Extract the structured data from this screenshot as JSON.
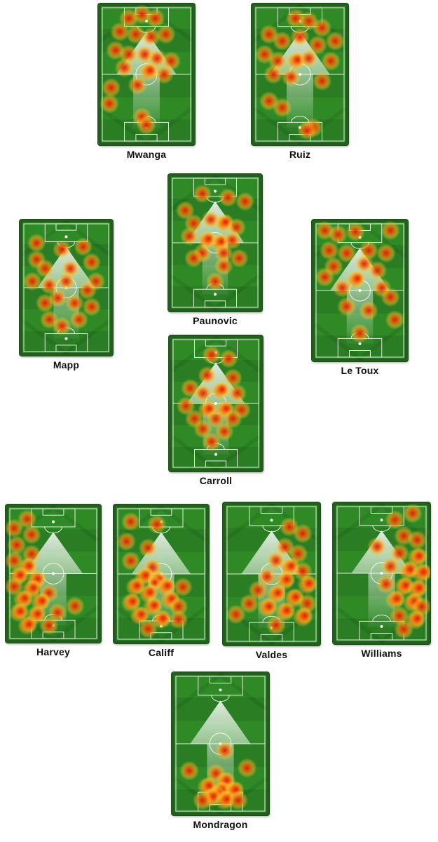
{
  "players": [
    {
      "id": "mwanga",
      "name": "Mwanga",
      "heat": [
        [
          0.3,
          0.08,
          1
        ],
        [
          0.45,
          0.05,
          1
        ],
        [
          0.6,
          0.08,
          1
        ],
        [
          0.2,
          0.18,
          1
        ],
        [
          0.38,
          0.2,
          1
        ],
        [
          0.55,
          0.22,
          1
        ],
        [
          0.72,
          0.2,
          1
        ],
        [
          0.15,
          0.32,
          1
        ],
        [
          0.3,
          0.35,
          1
        ],
        [
          0.48,
          0.35,
          1
        ],
        [
          0.62,
          0.38,
          1
        ],
        [
          0.78,
          0.4,
          1
        ],
        [
          0.25,
          0.45,
          1
        ],
        [
          0.52,
          0.48,
          2
        ],
        [
          0.7,
          0.5,
          1
        ],
        [
          0.1,
          0.6,
          1
        ],
        [
          0.4,
          0.58,
          1
        ],
        [
          0.08,
          0.72,
          1
        ],
        [
          0.45,
          0.82,
          1
        ],
        [
          0.5,
          0.88,
          1
        ]
      ]
    },
    {
      "id": "ruiz",
      "name": "Ruiz",
      "heat": [
        [
          0.45,
          0.08,
          1
        ],
        [
          0.6,
          0.1,
          1
        ],
        [
          0.75,
          0.15,
          1
        ],
        [
          0.15,
          0.2,
          1
        ],
        [
          0.3,
          0.25,
          1
        ],
        [
          0.5,
          0.22,
          1
        ],
        [
          0.7,
          0.28,
          1
        ],
        [
          0.9,
          0.25,
          1
        ],
        [
          0.1,
          0.35,
          1
        ],
        [
          0.25,
          0.4,
          1
        ],
        [
          0.45,
          0.4,
          2
        ],
        [
          0.6,
          0.38,
          1
        ],
        [
          0.85,
          0.4,
          1
        ],
        [
          0.2,
          0.5,
          1
        ],
        [
          0.4,
          0.52,
          1
        ],
        [
          0.75,
          0.55,
          1
        ],
        [
          0.15,
          0.7,
          1
        ],
        [
          0.3,
          0.75,
          1
        ],
        [
          0.65,
          0.9,
          1
        ],
        [
          0.58,
          0.92,
          1
        ]
      ]
    },
    {
      "id": "paunovic",
      "name": "Paunovic",
      "heat": [
        [
          0.35,
          0.12,
          1
        ],
        [
          0.65,
          0.15,
          1
        ],
        [
          0.85,
          0.18,
          1
        ],
        [
          0.15,
          0.25,
          1
        ],
        [
          0.25,
          0.35,
          1
        ],
        [
          0.45,
          0.32,
          1
        ],
        [
          0.6,
          0.35,
          2
        ],
        [
          0.75,
          0.38,
          1
        ],
        [
          0.2,
          0.45,
          1
        ],
        [
          0.4,
          0.48,
          2
        ],
        [
          0.55,
          0.5,
          2
        ],
        [
          0.7,
          0.48,
          1
        ],
        [
          0.35,
          0.58,
          1
        ],
        [
          0.6,
          0.58,
          1
        ],
        [
          0.6,
          0.68,
          1
        ],
        [
          0.5,
          0.8,
          1
        ],
        [
          0.78,
          0.62,
          1
        ],
        [
          0.25,
          0.62,
          1
        ]
      ]
    },
    {
      "id": "mapp",
      "name": "Mapp",
      "heat": [
        [
          0.15,
          0.15,
          1
        ],
        [
          0.45,
          0.2,
          1
        ],
        [
          0.7,
          0.18,
          1
        ],
        [
          0.15,
          0.28,
          1
        ],
        [
          0.25,
          0.35,
          1
        ],
        [
          0.55,
          0.35,
          1
        ],
        [
          0.8,
          0.3,
          1
        ],
        [
          0.1,
          0.45,
          1
        ],
        [
          0.3,
          0.48,
          1
        ],
        [
          0.5,
          0.45,
          1
        ],
        [
          0.75,
          0.52,
          1
        ],
        [
          0.85,
          0.45,
          1
        ],
        [
          0.25,
          0.62,
          1
        ],
        [
          0.4,
          0.58,
          1
        ],
        [
          0.6,
          0.62,
          1
        ],
        [
          0.8,
          0.65,
          1
        ],
        [
          0.3,
          0.75,
          1
        ],
        [
          0.65,
          0.75,
          1
        ],
        [
          0.45,
          0.8,
          1
        ]
      ]
    },
    {
      "id": "letoux",
      "name": "Le Toux",
      "heat": [
        [
          0.1,
          0.05,
          1
        ],
        [
          0.25,
          0.08,
          1
        ],
        [
          0.45,
          0.06,
          1
        ],
        [
          0.85,
          0.05,
          1
        ],
        [
          0.15,
          0.2,
          1
        ],
        [
          0.35,
          0.22,
          1
        ],
        [
          0.6,
          0.2,
          1
        ],
        [
          0.8,
          0.22,
          1
        ],
        [
          0.2,
          0.32,
          1
        ],
        [
          0.55,
          0.3,
          1
        ],
        [
          0.7,
          0.35,
          1
        ],
        [
          0.1,
          0.4,
          1
        ],
        [
          0.45,
          0.42,
          2
        ],
        [
          0.3,
          0.48,
          1
        ],
        [
          0.75,
          0.48,
          1
        ],
        [
          0.85,
          0.55,
          1
        ],
        [
          0.35,
          0.62,
          1
        ],
        [
          0.6,
          0.65,
          1
        ],
        [
          0.9,
          0.72,
          1
        ],
        [
          0.5,
          0.82,
          1
        ]
      ]
    },
    {
      "id": "carroll",
      "name": "Carroll",
      "heat": [
        [
          0.45,
          0.12,
          1
        ],
        [
          0.65,
          0.15,
          1
        ],
        [
          0.4,
          0.28,
          1
        ],
        [
          0.7,
          0.3,
          1
        ],
        [
          0.2,
          0.38,
          1
        ],
        [
          0.35,
          0.42,
          1
        ],
        [
          0.55,
          0.4,
          2
        ],
        [
          0.75,
          0.42,
          1
        ],
        [
          0.15,
          0.52,
          1
        ],
        [
          0.4,
          0.55,
          2
        ],
        [
          0.6,
          0.55,
          2
        ],
        [
          0.8,
          0.55,
          1
        ],
        [
          0.25,
          0.62,
          1
        ],
        [
          0.5,
          0.62,
          1
        ],
        [
          0.7,
          0.62,
          1
        ],
        [
          0.35,
          0.7,
          1
        ],
        [
          0.6,
          0.72,
          1
        ],
        [
          0.45,
          0.8,
          1
        ]
      ]
    },
    {
      "id": "harvey",
      "name": "Harvey",
      "heat": [
        [
          0.2,
          0.08,
          1
        ],
        [
          0.05,
          0.15,
          1
        ],
        [
          0.25,
          0.2,
          1
        ],
        [
          0.08,
          0.28,
          1
        ],
        [
          0.25,
          0.35,
          1
        ],
        [
          0.05,
          0.4,
          1
        ],
        [
          0.2,
          0.45,
          2
        ],
        [
          0.1,
          0.52,
          2
        ],
        [
          0.3,
          0.55,
          2
        ],
        [
          0.05,
          0.6,
          1
        ],
        [
          0.25,
          0.62,
          2
        ],
        [
          0.45,
          0.65,
          1
        ],
        [
          0.15,
          0.7,
          2
        ],
        [
          0.35,
          0.72,
          2
        ],
        [
          0.1,
          0.8,
          2
        ],
        [
          0.3,
          0.82,
          2
        ],
        [
          0.55,
          0.8,
          1
        ],
        [
          0.2,
          0.9,
          2
        ],
        [
          0.45,
          0.9,
          1
        ],
        [
          0.75,
          0.75,
          1
        ]
      ]
    },
    {
      "id": "califf",
      "name": "Califf",
      "heat": [
        [
          0.15,
          0.1,
          1
        ],
        [
          0.45,
          0.12,
          1
        ],
        [
          0.1,
          0.25,
          1
        ],
        [
          0.35,
          0.3,
          1
        ],
        [
          0.15,
          0.4,
          1
        ],
        [
          0.4,
          0.45,
          1
        ],
        [
          0.3,
          0.52,
          2
        ],
        [
          0.45,
          0.55,
          3
        ],
        [
          0.55,
          0.6,
          2
        ],
        [
          0.2,
          0.6,
          2
        ],
        [
          0.35,
          0.65,
          2
        ],
        [
          0.6,
          0.7,
          2
        ],
        [
          0.15,
          0.72,
          2
        ],
        [
          0.4,
          0.75,
          2
        ],
        [
          0.7,
          0.75,
          1
        ],
        [
          0.25,
          0.82,
          2
        ],
        [
          0.5,
          0.85,
          2
        ],
        [
          0.7,
          0.85,
          1
        ],
        [
          0.35,
          0.92,
          1
        ],
        [
          0.75,
          0.6,
          1
        ]
      ]
    },
    {
      "id": "valdes",
      "name": "Valdes",
      "heat": [
        [
          0.7,
          0.15,
          1
        ],
        [
          0.85,
          0.2,
          1
        ],
        [
          0.65,
          0.3,
          1
        ],
        [
          0.8,
          0.35,
          1
        ],
        [
          0.55,
          0.4,
          1
        ],
        [
          0.7,
          0.45,
          2
        ],
        [
          0.85,
          0.48,
          1
        ],
        [
          0.45,
          0.52,
          1
        ],
        [
          0.65,
          0.55,
          2
        ],
        [
          0.9,
          0.58,
          2
        ],
        [
          0.35,
          0.62,
          1
        ],
        [
          0.55,
          0.65,
          2
        ],
        [
          0.75,
          0.68,
          2
        ],
        [
          0.9,
          0.72,
          1
        ],
        [
          0.25,
          0.72,
          1
        ],
        [
          0.45,
          0.75,
          2
        ],
        [
          0.65,
          0.78,
          2
        ],
        [
          0.85,
          0.82,
          2
        ],
        [
          0.55,
          0.88,
          1
        ],
        [
          0.1,
          0.8,
          1
        ]
      ]
    },
    {
      "id": "williams",
      "name": "Williams",
      "heat": [
        [
          0.65,
          0.1,
          1
        ],
        [
          0.85,
          0.05,
          1
        ],
        [
          0.75,
          0.22,
          1
        ],
        [
          0.9,
          0.25,
          1
        ],
        [
          0.45,
          0.3,
          1
        ],
        [
          0.7,
          0.35,
          1
        ],
        [
          0.9,
          0.38,
          2
        ],
        [
          0.6,
          0.45,
          1
        ],
        [
          0.8,
          0.48,
          2
        ],
        [
          0.95,
          0.5,
          2
        ],
        [
          0.55,
          0.58,
          1
        ],
        [
          0.75,
          0.6,
          2
        ],
        [
          0.9,
          0.62,
          2
        ],
        [
          0.65,
          0.7,
          2
        ],
        [
          0.85,
          0.72,
          2
        ],
        [
          0.95,
          0.75,
          1
        ],
        [
          0.7,
          0.82,
          1
        ],
        [
          0.88,
          0.85,
          2
        ],
        [
          0.75,
          0.92,
          1
        ]
      ]
    },
    {
      "id": "mondragon",
      "name": "Mondragon",
      "heat": [
        [
          0.55,
          0.55,
          1
        ],
        [
          0.15,
          0.7,
          1
        ],
        [
          0.8,
          0.68,
          1
        ],
        [
          0.45,
          0.72,
          1
        ],
        [
          0.55,
          0.78,
          2
        ],
        [
          0.35,
          0.82,
          2
        ],
        [
          0.5,
          0.85,
          3
        ],
        [
          0.65,
          0.85,
          2
        ],
        [
          0.4,
          0.9,
          2
        ],
        [
          0.55,
          0.92,
          2
        ],
        [
          0.7,
          0.92,
          1
        ],
        [
          0.3,
          0.92,
          1
        ]
      ]
    }
  ]
}
